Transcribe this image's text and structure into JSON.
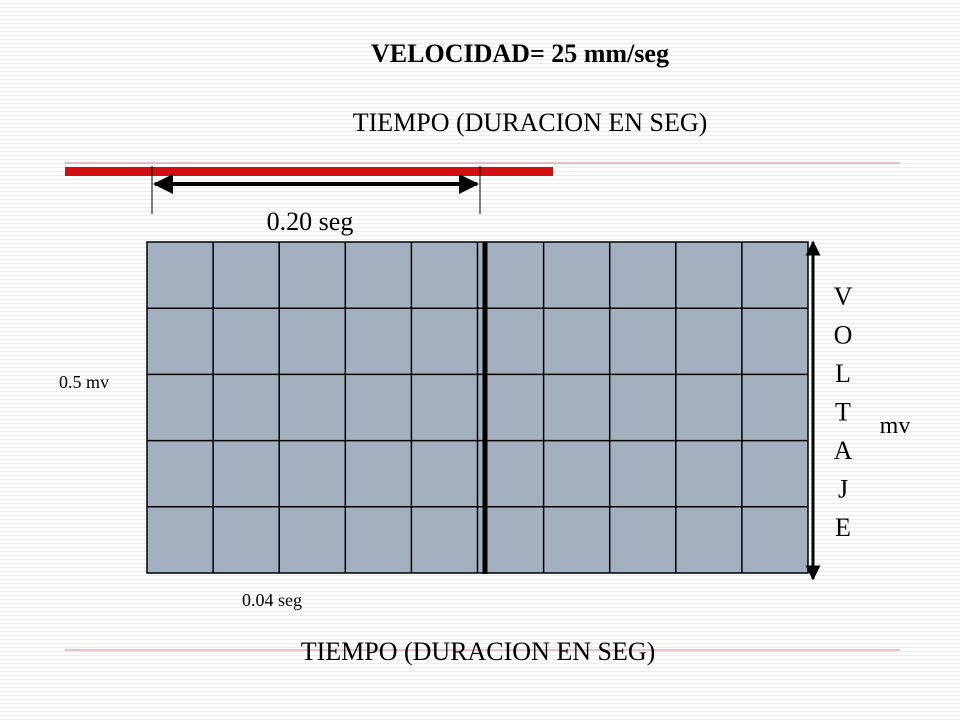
{
  "header": {
    "title": "VELOCIDAD= 25 mm/seg",
    "subtitle": "TIEMPO (DURACION EN SEG)"
  },
  "interval_label": "0.20 seg",
  "amplitude_label": "0.5 mv",
  "small_square_label": "0.04 seg",
  "voltage_letters": [
    "V",
    "O",
    "L",
    "T",
    "A",
    "J",
    "E"
  ],
  "voltage_unit": "mv",
  "footer": {
    "caption": "TIEMPO (DURACION EN SEG)"
  }
}
